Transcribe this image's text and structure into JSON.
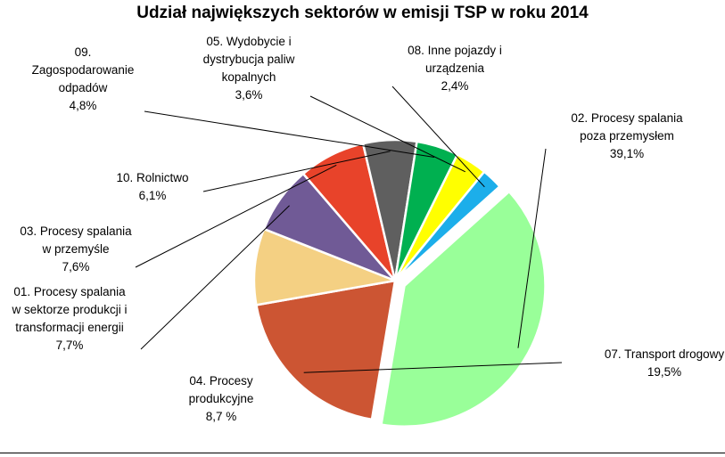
{
  "chart_data": {
    "type": "pie",
    "title": "Udział największych sektorów w emisji TSP w roku 2014",
    "slices": [
      {
        "lines": [
          "02. Procesy spalania",
          "poza przemysłem",
          "39,1%"
        ],
        "value": 39.1,
        "color": "#99FF99",
        "exploded": true
      },
      {
        "lines": [
          "07. Transport drogowy",
          "19,5%"
        ],
        "value": 19.5,
        "color": "#CC5533"
      },
      {
        "lines": [
          "04. Procesy",
          "produkcyjne",
          "8,7 %"
        ],
        "value": 8.7,
        "color": "#F4D083"
      },
      {
        "lines": [
          "01. Procesy spalania",
          "w sektorze produkcji i",
          "transformacji energii",
          "7,7%"
        ],
        "value": 7.7,
        "color": "#705A96"
      },
      {
        "lines": [
          "03. Procesy spalania",
          "w przemyśle",
          "7,6%"
        ],
        "value": 7.6,
        "color": "#E8432A"
      },
      {
        "lines": [
          "10. Rolnictwo",
          "6,1%"
        ],
        "value": 6.1,
        "color": "#5F5F5F"
      },
      {
        "lines": [
          "09.",
          "Zagospodarowanie",
          "odpadów",
          "4,8%"
        ],
        "value": 4.8,
        "color": "#00B050"
      },
      {
        "lines": [
          "05. Wydobycie i",
          "dystrybucja paliw",
          "kopalnych",
          "3,6%"
        ],
        "value": 3.6,
        "color": "#FFFF00"
      },
      {
        "lines": [
          "08. Inne pojazdy i",
          "urządzenia",
          "2,4%"
        ],
        "value": 2.4,
        "color": "#1CAEEA"
      }
    ]
  }
}
